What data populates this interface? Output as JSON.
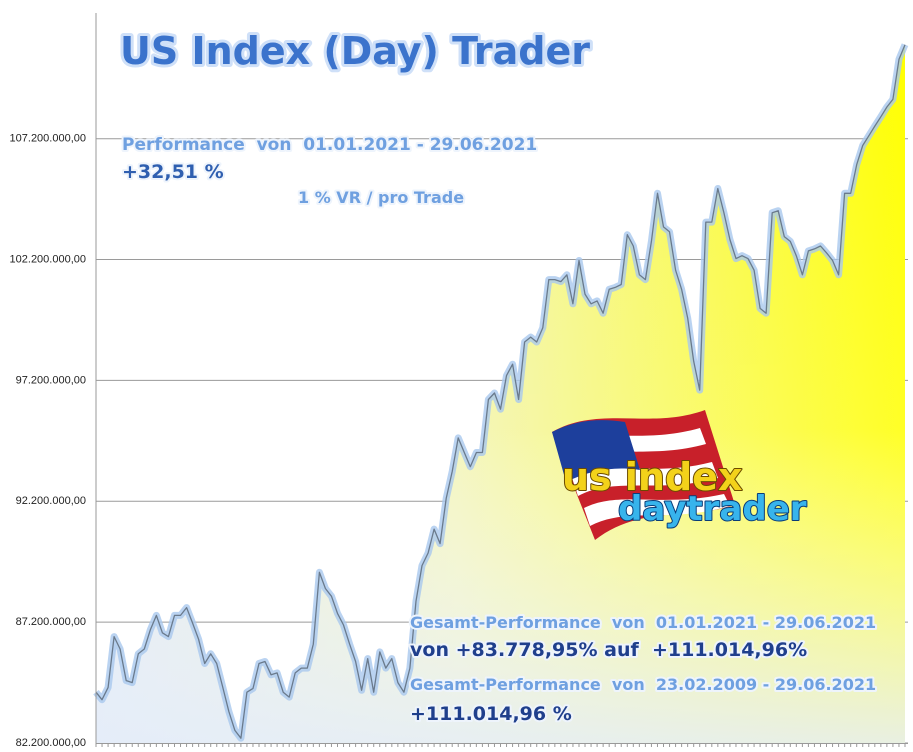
{
  "chart_data": {
    "type": "area",
    "title": "US Index (Day) Trader",
    "annotations": [
      "Performance  von  01.01.2021 - 29.06.2021",
      "+32,51 %",
      "1 % VR / pro Trade",
      "Gesamt-Performance  von  01.01.2021 - 29.06.2021",
      "von +83.778,95% auf  +111.014,96%",
      "Gesamt-Performance  von  23.02.2009 - 29.06.2021",
      "+111.014,96 %"
    ],
    "logo": [
      "us index",
      "daytrader"
    ],
    "ylim": [
      82200000,
      112400000
    ],
    "yticks": [
      {
        "value": 82200000,
        "label": "82.200.000,00"
      },
      {
        "value": 87200000,
        "label": "87.200.000,00"
      },
      {
        "value": 92200000,
        "label": "92.200.000,00"
      },
      {
        "value": 97200000,
        "label": "97.200.000,00"
      },
      {
        "value": 102200000,
        "label": "102.200.000,00"
      },
      {
        "value": 107200000,
        "label": "107.200.000,00"
      }
    ],
    "grid": true,
    "values": [
      84300000,
      83990000,
      84500000,
      86600000,
      86090000,
      84780000,
      84700000,
      85890000,
      86090000,
      86880000,
      87480000,
      86760000,
      86600000,
      87480000,
      87480000,
      87800000,
      87160000,
      86490000,
      85490000,
      85890000,
      85490000,
      84500000,
      83510000,
      82720000,
      82400000,
      84300000,
      84460000,
      85490000,
      85570000,
      85020000,
      85100000,
      84300000,
      84100000,
      85100000,
      85300000,
      85300000,
      86290000,
      89260000,
      88590000,
      88270000,
      87560000,
      87080000,
      86290000,
      85570000,
      84380000,
      85690000,
      84300000,
      85970000,
      85300000,
      85690000,
      84700000,
      84300000,
      85300000,
      88070000,
      89540000,
      90060000,
      91050000,
      90450000,
      92320000,
      93430000,
      94820000,
      94220000,
      93630000,
      94220000,
      94220000,
      96410000,
      96680000,
      96010000,
      97400000,
      97870000,
      96410000,
      98790000,
      98990000,
      98790000,
      99380000,
      101370000,
      101370000,
      101290000,
      101570000,
      100370000,
      102160000,
      100770000,
      100370000,
      100490000,
      99980000,
      100970000,
      101050000,
      101170000,
      103230000,
      102760000,
      101570000,
      101370000,
      102950000,
      104940000,
      103550000,
      103350000,
      101760000,
      100970000,
      99780000,
      97990000,
      96800000,
      103750000,
      103750000,
      105140000,
      104140000,
      103030000,
      102240000,
      102360000,
      102240000,
      101760000,
      100180000,
      99980000,
      104140000,
      104220000,
      103150000,
      102950000,
      102360000,
      101570000,
      102560000,
      102640000,
      102760000,
      102480000,
      102160000,
      101570000,
      104940000,
      104940000,
      106130000,
      106920000,
      107320000,
      107720000,
      108110000,
      108510000,
      108830000,
      110490000,
      111090000
    ]
  }
}
